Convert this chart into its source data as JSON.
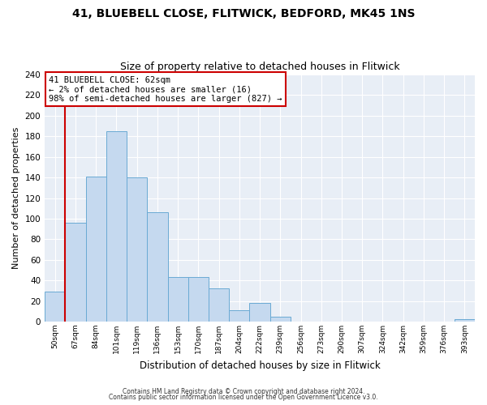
{
  "title": "41, BLUEBELL CLOSE, FLITWICK, BEDFORD, MK45 1NS",
  "subtitle": "Size of property relative to detached houses in Flitwick",
  "xlabel": "Distribution of detached houses by size in Flitwick",
  "ylabel": "Number of detached properties",
  "bin_labels": [
    "50sqm",
    "67sqm",
    "84sqm",
    "101sqm",
    "119sqm",
    "136sqm",
    "153sqm",
    "170sqm",
    "187sqm",
    "204sqm",
    "222sqm",
    "239sqm",
    "256sqm",
    "273sqm",
    "290sqm",
    "307sqm",
    "324sqm",
    "342sqm",
    "359sqm",
    "376sqm",
    "393sqm"
  ],
  "bar_heights": [
    29,
    96,
    141,
    185,
    140,
    106,
    43,
    43,
    32,
    11,
    18,
    5,
    0,
    0,
    0,
    0,
    0,
    0,
    0,
    0,
    2
  ],
  "bar_color": "#c5d9ef",
  "bar_edge_color": "#6aaad4",
  "highlight_line_color": "#cc0000",
  "ylim": [
    0,
    240
  ],
  "yticks": [
    0,
    20,
    40,
    60,
    80,
    100,
    120,
    140,
    160,
    180,
    200,
    220,
    240
  ],
  "annotation_title": "41 BLUEBELL CLOSE: 62sqm",
  "annotation_line1": "← 2% of detached houses are smaller (16)",
  "annotation_line2": "98% of semi-detached houses are larger (827) →",
  "annotation_box_color": "#ffffff",
  "annotation_box_edge": "#cc0000",
  "footer1": "Contains HM Land Registry data © Crown copyright and database right 2024.",
  "footer2": "Contains public sector information licensed under the Open Government Licence v3.0.",
  "background_color": "#ffffff",
  "plot_bg_color": "#e8eef6",
  "grid_color": "#ffffff"
}
